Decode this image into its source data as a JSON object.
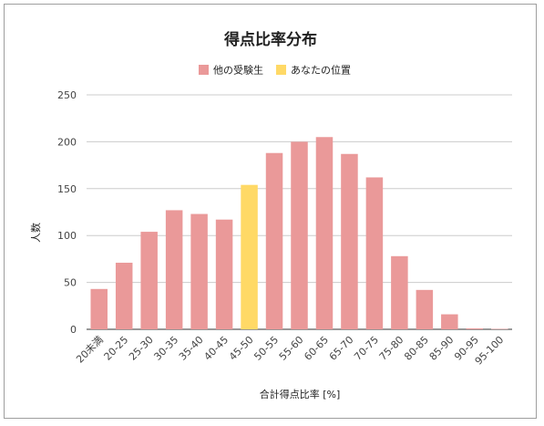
{
  "chart_data": {
    "type": "bar",
    "title": "得点比率分布",
    "xlabel": "合計得点比率 [%]",
    "ylabel": "人数",
    "ylim": [
      0,
      250
    ],
    "yticks": [
      0,
      50,
      100,
      150,
      200,
      250
    ],
    "grid": true,
    "legend_position": "top",
    "categories": [
      "20未満",
      "20-25",
      "25-30",
      "30-35",
      "35-40",
      "40-45",
      "45-50",
      "50-55",
      "55-60",
      "60-65",
      "65-70",
      "70-75",
      "75-80",
      "80-85",
      "85-90",
      "90-95",
      "95-100"
    ],
    "values": [
      43,
      71,
      104,
      127,
      123,
      117,
      154,
      188,
      200,
      205,
      187,
      162,
      78,
      42,
      16,
      1,
      0.5
    ],
    "highlight_index": 6,
    "series": [
      {
        "name": "他の受験生",
        "color": "#ea9999"
      },
      {
        "name": "あなたの位置",
        "color": "#ffd966"
      }
    ]
  },
  "colors": {
    "grid": "#cccccc",
    "axis": "#333333"
  }
}
